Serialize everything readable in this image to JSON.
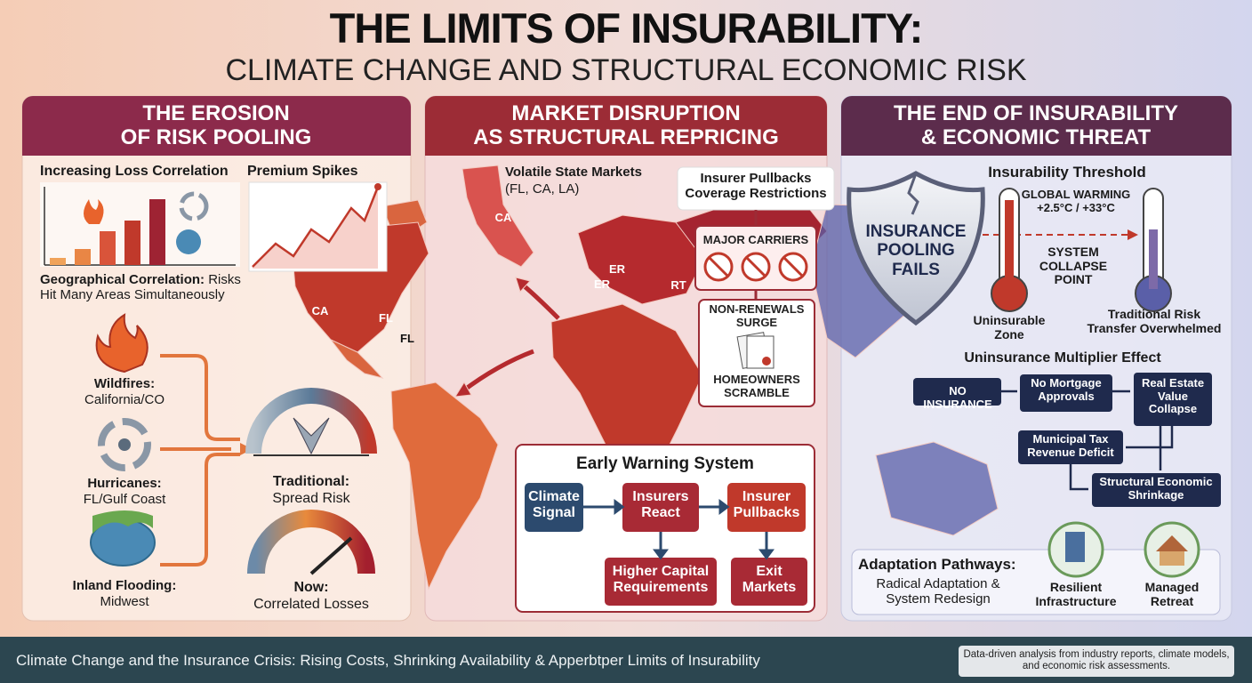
{
  "header": {
    "title": "THE LIMITS OF INSURABILITY:",
    "subtitle": "CLIMATE CHANGE AND STRUCTURAL ECONOMIC RISK"
  },
  "panels": [
    {
      "title": [
        "THE EROSION",
        "OF RISK POOLING"
      ],
      "loss_correlation": "Increasing Loss Correlation",
      "premium_spikes": "Premium Spikes",
      "geo_label": "Geographical Correlation:",
      "geo_text": "Risks Hit Many Areas Simultaneously",
      "hazards": [
        {
          "name": "Wildfires:",
          "area": "California/CO"
        },
        {
          "name": "Hurricanes:",
          "area": "FL/Gulf Coast"
        },
        {
          "name": "Inland Flooding:",
          "area": "Midwest"
        }
      ],
      "gauges": [
        {
          "label": "Traditional:",
          "text": "Spread Risk"
        },
        {
          "label": "Now:",
          "text": "Correlated Losses"
        }
      ]
    },
    {
      "title": [
        "MARKET DISRUPTION",
        "AS STRUCTURAL REPRICING"
      ],
      "volatile": "Volatile State Markets",
      "volatile_states": "(FL, CA, LA)",
      "map_labels": [
        "CA",
        "CA",
        "FL",
        "FL",
        "ER",
        "ER",
        "RT"
      ],
      "pullbacks": [
        "Insurer Pullbacks",
        "Coverage Restrictions"
      ],
      "carriers": "MAJOR CARRIERS",
      "nonrenewals": [
        "NON-RENEWALS",
        "SURGE"
      ],
      "homeowners": [
        "HOMEOWNERS",
        "SCRAMBLE"
      ],
      "warning": {
        "title": "Early Warning System",
        "steps": [
          [
            "Climate",
            "Signal"
          ],
          [
            "Insurers",
            "React"
          ],
          [
            "Insurer",
            "Pullbacks"
          ],
          [
            "Higher Capital",
            "Requirements"
          ],
          [
            "Exit",
            "Markets"
          ]
        ]
      }
    },
    {
      "title": [
        "THE END OF INSURABILITY",
        "& ECONOMIC THREAT"
      ],
      "shield": [
        "INSURANCE",
        "POOLING",
        "FAILS"
      ],
      "threshold": "Insurability Threshold",
      "warming": [
        "GLOBAL WARMING",
        "+2.5°C / +33°C"
      ],
      "collapse": [
        "SYSTEM",
        "COLLAPSE",
        "POINT"
      ],
      "uninsurable": [
        "Uninsurable",
        "Zone"
      ],
      "overwhelmed": [
        "Traditional Risk",
        "Transfer Overwhelmed"
      ],
      "multiplier": "Uninsurance Multiplier Effect",
      "flow": [
        [
          "NO INSURANCE"
        ],
        [
          "No Mortgage",
          "Approvals"
        ],
        [
          "Real Estate",
          "Value",
          "Collapse"
        ],
        [
          "Municipal Tax",
          "Revenue Deficit"
        ],
        [
          "Structural Economic",
          "Shrinkage"
        ]
      ],
      "adaptation": {
        "title": "Adaptation Pathways:",
        "text": [
          "Radical Adaptation &",
          "System Redesign"
        ],
        "options": [
          [
            "Resilient",
            "Infrastructure"
          ],
          [
            "Managed",
            "Retreat"
          ]
        ]
      }
    }
  ],
  "footer": {
    "text": "Climate Change and the Insurance Crisis: Rising Costs, Shrinking Availability & Apperbtper Limits of Insurability",
    "note": [
      "Data-driven analysis from industry reports, climate models,",
      "and economic risk assessments."
    ]
  }
}
